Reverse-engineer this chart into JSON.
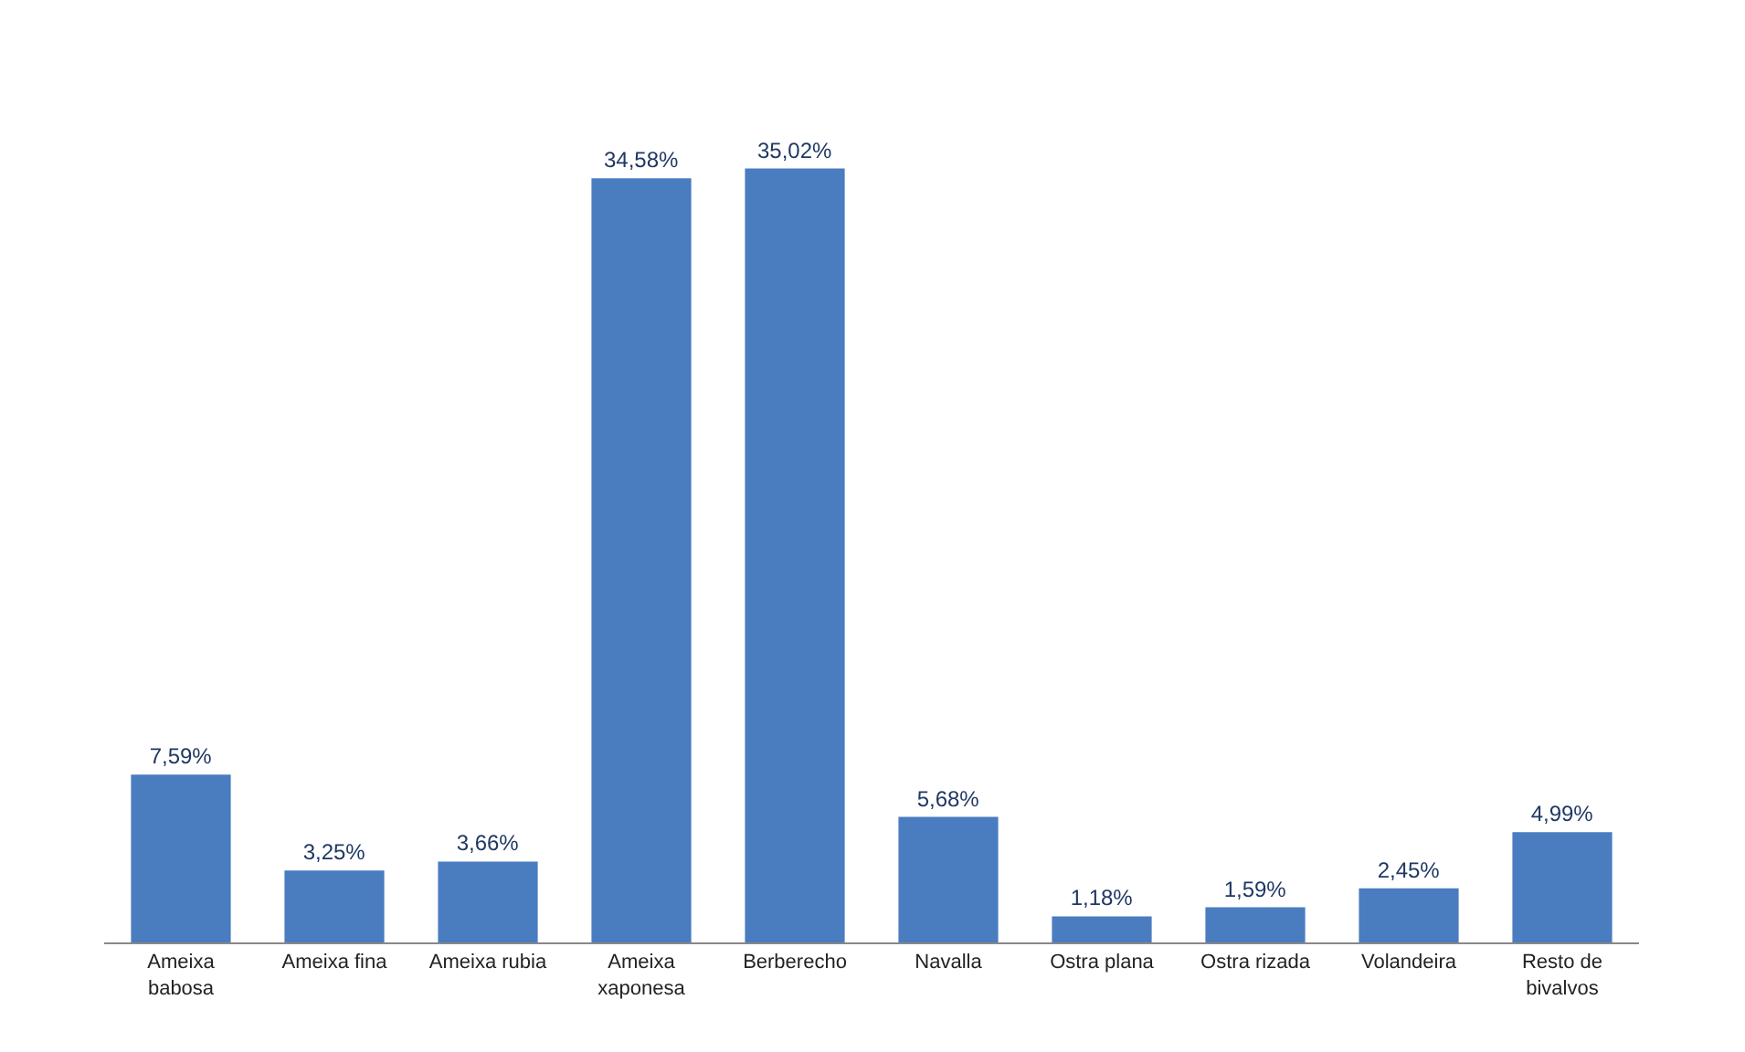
{
  "chart_data": {
    "type": "bar",
    "categories": [
      "Ameixa babosa",
      "Ameixa fina",
      "Ameixa rubia",
      "Ameixa xaponesa",
      "Berberecho",
      "Navalla",
      "Ostra plana",
      "Ostra rizada",
      "Volandeira",
      "Resto de bivalvos"
    ],
    "values": [
      7.59,
      3.25,
      3.66,
      34.58,
      35.02,
      5.68,
      1.18,
      1.59,
      2.45,
      4.99
    ],
    "value_labels": [
      "7,59%",
      "3,25%",
      "3,66%",
      "34,58%",
      "35,02%",
      "5,68%",
      "1,18%",
      "1,59%",
      "2,45%",
      "4,99%"
    ],
    "color": "#4a7cc0",
    "grid": false,
    "legend": false
  }
}
